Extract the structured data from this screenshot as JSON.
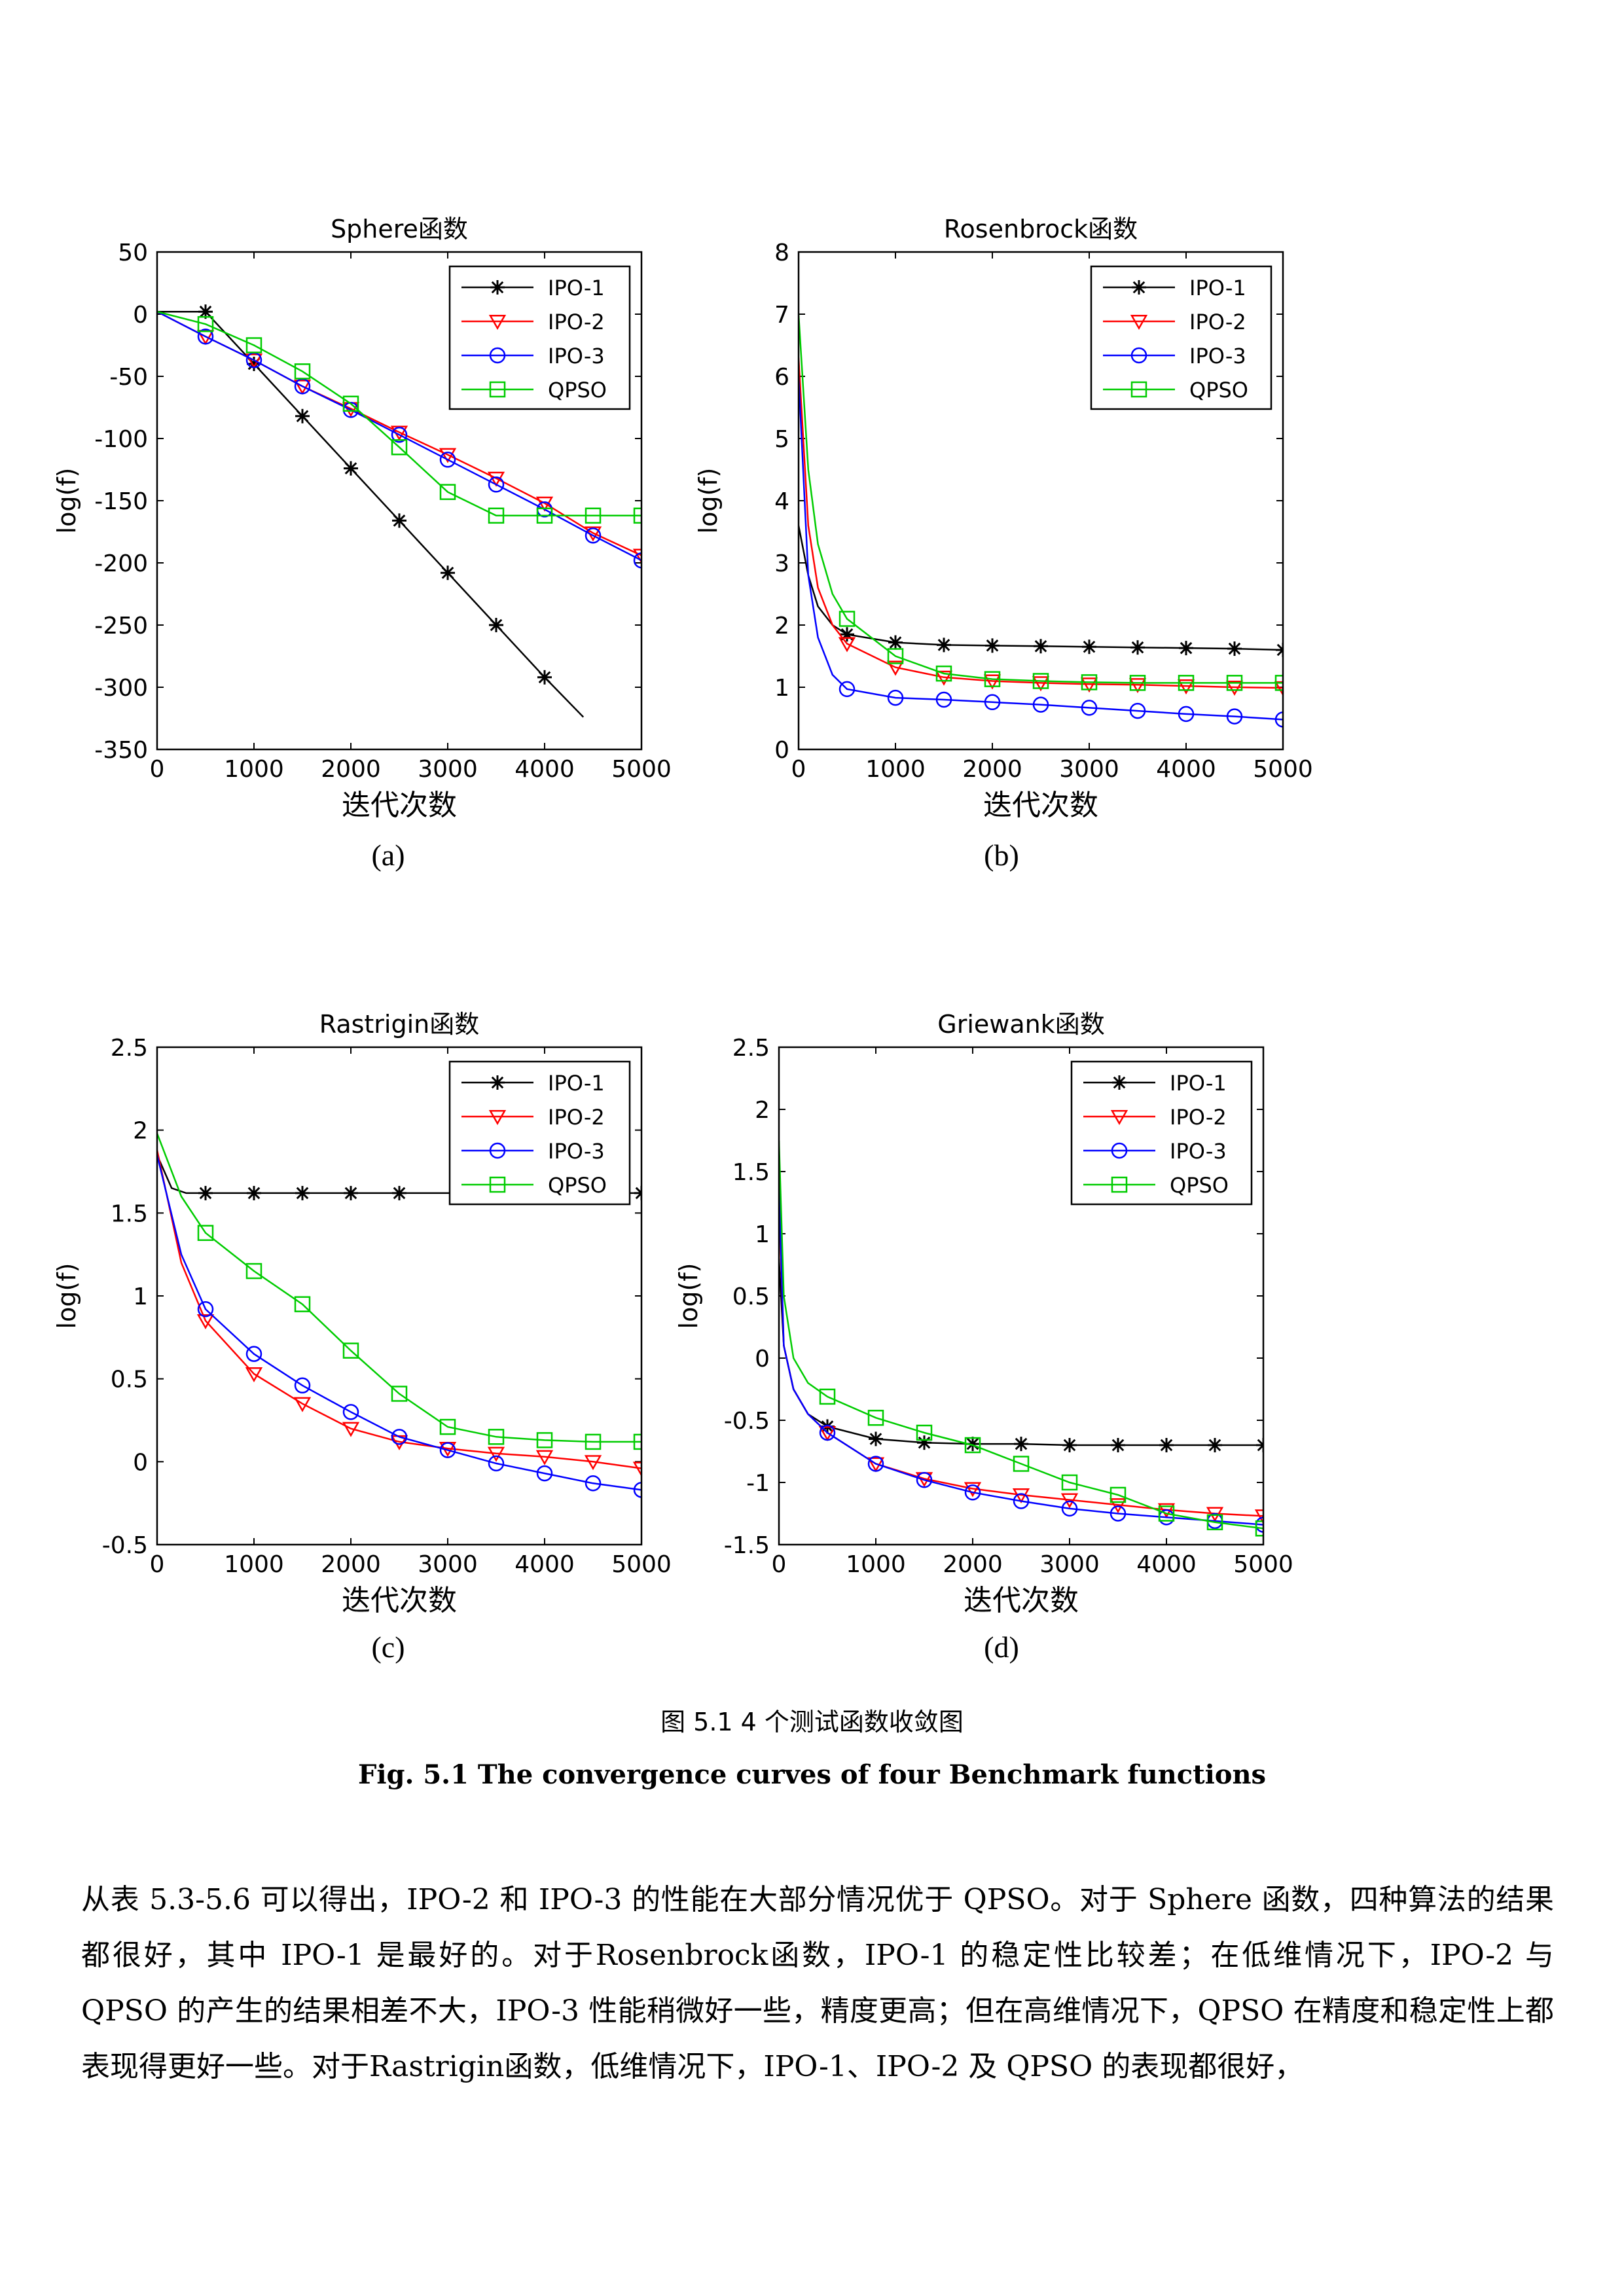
{
  "chart_data": [
    {
      "type": "line",
      "title": "Sphere函数",
      "xlabel": "迭代次数",
      "ylabel": "log(f)",
      "xlim": [
        0,
        5000
      ],
      "ylim": [
        -350,
        50
      ],
      "xticks": [
        0,
        1000,
        2000,
        3000,
        4000,
        5000
      ],
      "yticks": [
        -350,
        -300,
        -250,
        -200,
        -150,
        -100,
        -50,
        0,
        50
      ],
      "legend": "top-right",
      "grid": false,
      "sublabel": "(a)",
      "series": [
        {
          "name": "IPO-1",
          "color": "#000000",
          "marker": "star",
          "x": [
            0,
            500,
            1000,
            1500,
            2000,
            2500,
            3000,
            3500,
            4000,
            4400
          ],
          "y": [
            2,
            2,
            -40,
            -82,
            -124,
            -166,
            -208,
            -250,
            -292,
            -324
          ],
          "markers_x": [
            500,
            1000,
            1500,
            2000,
            2500,
            3000,
            3500,
            4000
          ]
        },
        {
          "name": "IPO-2",
          "color": "#ff0000",
          "marker": "triangle-down",
          "x": [
            0,
            500,
            1000,
            1500,
            2000,
            2500,
            3000,
            3500,
            4000,
            4500,
            5000
          ],
          "y": [
            2,
            -18,
            -37,
            -58,
            -76,
            -95,
            -113,
            -132,
            -152,
            -176,
            -194
          ],
          "markers_x": [
            500,
            1000,
            1500,
            2000,
            2500,
            3000,
            3500,
            4000,
            4500,
            5000
          ]
        },
        {
          "name": "IPO-3",
          "color": "#0000ff",
          "marker": "circle",
          "x": [
            0,
            500,
            1000,
            1500,
            2000,
            2500,
            3000,
            3500,
            4000,
            4500,
            5000
          ],
          "y": [
            2,
            -18,
            -37,
            -58,
            -77,
            -97,
            -117,
            -137,
            -157,
            -178,
            -198
          ],
          "markers_x": [
            500,
            1000,
            1500,
            2000,
            2500,
            3000,
            3500,
            4000,
            4500,
            5000
          ]
        },
        {
          "name": "QPSO",
          "color": "#00cc00",
          "marker": "square",
          "x": [
            0,
            500,
            1000,
            1500,
            2000,
            2500,
            3000,
            3500,
            4000,
            4500,
            5000
          ],
          "y": [
            2,
            -8,
            -25,
            -46,
            -72,
            -107,
            -143,
            -162,
            -162,
            -162,
            -162
          ],
          "markers_x": [
            500,
            1000,
            1500,
            2000,
            2500,
            3000,
            3500,
            4000,
            4500,
            5000
          ]
        }
      ]
    },
    {
      "type": "line",
      "title": "Rosenbrock函数",
      "xlabel": "迭代次数",
      "ylabel": "log(f)",
      "xlim": [
        0,
        5000
      ],
      "ylim": [
        0,
        8
      ],
      "xticks": [
        0,
        1000,
        2000,
        3000,
        4000,
        5000
      ],
      "yticks": [
        0,
        1,
        2,
        3,
        4,
        5,
        6,
        7,
        8
      ],
      "legend": "top-right",
      "grid": false,
      "sublabel": "(b)",
      "series": [
        {
          "name": "IPO-1",
          "color": "#000000",
          "marker": "star",
          "x": [
            0,
            100,
            200,
            350,
            500,
            1000,
            1500,
            2000,
            2500,
            3000,
            3500,
            4000,
            4500,
            5000
          ],
          "y": [
            3.6,
            2.8,
            2.3,
            2.0,
            1.85,
            1.72,
            1.68,
            1.67,
            1.66,
            1.65,
            1.64,
            1.63,
            1.62,
            1.6
          ],
          "markers_x": [
            500,
            1000,
            1500,
            2000,
            2500,
            3000,
            3500,
            4000,
            4500,
            5000
          ]
        },
        {
          "name": "IPO-2",
          "color": "#ff0000",
          "marker": "triangle-down",
          "x": [
            0,
            100,
            200,
            350,
            500,
            1000,
            1500,
            2000,
            2500,
            3000,
            3500,
            4000,
            4500,
            5000
          ],
          "y": [
            6.3,
            3.6,
            2.6,
            2.0,
            1.7,
            1.32,
            1.16,
            1.1,
            1.07,
            1.05,
            1.04,
            1.02,
            1.0,
            0.99
          ],
          "markers_x": [
            500,
            1000,
            1500,
            2000,
            2500,
            3000,
            3500,
            4000,
            4500,
            5000
          ]
        },
        {
          "name": "IPO-3",
          "color": "#0000ff",
          "marker": "circle",
          "x": [
            0,
            100,
            200,
            350,
            500,
            1000,
            1500,
            2000,
            2500,
            3000,
            3500,
            4000,
            4500,
            5000
          ],
          "y": [
            6.0,
            2.8,
            1.8,
            1.2,
            0.97,
            0.83,
            0.8,
            0.76,
            0.72,
            0.67,
            0.62,
            0.57,
            0.53,
            0.48
          ],
          "markers_x": [
            500,
            1000,
            1500,
            2000,
            2500,
            3000,
            3500,
            4000,
            4500,
            5000
          ]
        },
        {
          "name": "QPSO",
          "color": "#00cc00",
          "marker": "square",
          "x": [
            0,
            100,
            200,
            350,
            500,
            1000,
            1500,
            2000,
            2500,
            3000,
            3500,
            4000,
            4500,
            5000
          ],
          "y": [
            7.0,
            4.5,
            3.3,
            2.5,
            2.1,
            1.5,
            1.22,
            1.13,
            1.1,
            1.08,
            1.07,
            1.07,
            1.07,
            1.07
          ],
          "markers_x": [
            500,
            1000,
            1500,
            2000,
            2500,
            3000,
            3500,
            4000,
            4500,
            5000
          ]
        }
      ]
    },
    {
      "type": "line",
      "title": "Rastrigin函数",
      "xlabel": "迭代次数",
      "ylabel": "log(f)",
      "xlim": [
        0,
        5000
      ],
      "ylim": [
        -0.5,
        2.5
      ],
      "xticks": [
        0,
        1000,
        2000,
        3000,
        4000,
        5000
      ],
      "yticks": [
        -0.5,
        0,
        0.5,
        1,
        1.5,
        2,
        2.5
      ],
      "legend": "top-right",
      "grid": false,
      "sublabel": "(c)",
      "series": [
        {
          "name": "IPO-1",
          "color": "#000000",
          "marker": "star",
          "x": [
            0,
            150,
            300,
            500,
            1000,
            1500,
            2000,
            2500,
            3000,
            3500,
            4000,
            4500,
            5000
          ],
          "y": [
            1.85,
            1.65,
            1.62,
            1.62,
            1.62,
            1.62,
            1.62,
            1.62,
            1.62,
            1.62,
            1.62,
            1.62,
            1.62
          ],
          "markers_x": [
            500,
            1000,
            1500,
            2000,
            2500,
            5000
          ]
        },
        {
          "name": "IPO-2",
          "color": "#ff0000",
          "marker": "triangle-down",
          "x": [
            0,
            250,
            500,
            1000,
            1500,
            2000,
            2500,
            3000,
            3500,
            4000,
            4500,
            5000
          ],
          "y": [
            1.88,
            1.2,
            0.85,
            0.53,
            0.35,
            0.2,
            0.12,
            0.08,
            0.05,
            0.03,
            0.0,
            -0.04
          ],
          "markers_x": [
            500,
            1000,
            1500,
            2000,
            2500,
            3000,
            3500,
            4000,
            4500,
            5000
          ]
        },
        {
          "name": "IPO-3",
          "color": "#0000ff",
          "marker": "circle",
          "x": [
            0,
            250,
            500,
            1000,
            1500,
            2000,
            2500,
            3000,
            3500,
            4000,
            4500,
            5000
          ],
          "y": [
            1.85,
            1.25,
            0.92,
            0.65,
            0.46,
            0.3,
            0.15,
            0.07,
            -0.01,
            -0.07,
            -0.13,
            -0.17
          ],
          "markers_x": [
            500,
            1000,
            1500,
            2000,
            2500,
            3000,
            3500,
            4000,
            4500,
            5000
          ]
        },
        {
          "name": "QPSO",
          "color": "#00cc00",
          "marker": "square",
          "x": [
            0,
            250,
            500,
            1000,
            1500,
            2000,
            2500,
            3000,
            3500,
            4000,
            4500,
            5000
          ],
          "y": [
            1.98,
            1.6,
            1.38,
            1.15,
            0.95,
            0.67,
            0.41,
            0.21,
            0.15,
            0.13,
            0.12,
            0.12
          ],
          "markers_x": [
            500,
            1000,
            1500,
            2000,
            2500,
            3000,
            3500,
            4000,
            4500,
            5000
          ]
        }
      ]
    },
    {
      "type": "line",
      "title": "Griewank函数",
      "xlabel": "迭代次数",
      "ylabel": "log(f)",
      "xlim": [
        0,
        5000
      ],
      "ylim": [
        -1.5,
        2.5
      ],
      "xticks": [
        0,
        1000,
        2000,
        3000,
        4000,
        5000
      ],
      "yticks": [
        -1.5,
        -1,
        -0.5,
        0,
        0.5,
        1,
        1.5,
        2,
        2.5
      ],
      "legend": "top-right",
      "grid": false,
      "sublabel": "(d)",
      "series": [
        {
          "name": "IPO-1",
          "color": "#000000",
          "marker": "star",
          "x": [
            0,
            50,
            150,
            300,
            500,
            1000,
            1500,
            2000,
            2500,
            3000,
            3500,
            4000,
            4500,
            5000
          ],
          "y": [
            0.8,
            0.1,
            -0.25,
            -0.45,
            -0.55,
            -0.65,
            -0.68,
            -0.69,
            -0.69,
            -0.7,
            -0.7,
            -0.7,
            -0.7,
            -0.7
          ],
          "markers_x": [
            500,
            1000,
            1500,
            2000,
            2500,
            3000,
            3500,
            4000,
            4500,
            5000
          ]
        },
        {
          "name": "IPO-2",
          "color": "#ff0000",
          "marker": "triangle-down",
          "x": [
            0,
            50,
            150,
            300,
            500,
            1000,
            1500,
            2000,
            2500,
            3000,
            3500,
            4000,
            4500,
            5000
          ],
          "y": [
            1.3,
            0.1,
            -0.25,
            -0.45,
            -0.6,
            -0.85,
            -0.97,
            -1.05,
            -1.1,
            -1.14,
            -1.18,
            -1.22,
            -1.25,
            -1.27
          ],
          "markers_x": [
            500,
            1000,
            1500,
            2000,
            2500,
            3000,
            3500,
            4000,
            4500,
            5000
          ]
        },
        {
          "name": "IPO-3",
          "color": "#0000ff",
          "marker": "circle",
          "x": [
            0,
            50,
            150,
            300,
            500,
            1000,
            1500,
            2000,
            2500,
            3000,
            3500,
            4000,
            4500,
            5000
          ],
          "y": [
            1.4,
            0.1,
            -0.25,
            -0.45,
            -0.6,
            -0.85,
            -0.98,
            -1.08,
            -1.15,
            -1.21,
            -1.25,
            -1.28,
            -1.31,
            -1.34
          ],
          "markers_x": [
            500,
            1000,
            1500,
            2000,
            2500,
            3000,
            3500,
            4000,
            4500,
            5000
          ]
        },
        {
          "name": "QPSO",
          "color": "#00cc00",
          "marker": "square",
          "x": [
            0,
            50,
            150,
            300,
            500,
            1000,
            1500,
            2000,
            2500,
            3000,
            3500,
            4000,
            4500,
            5000
          ],
          "y": [
            1.75,
            0.5,
            0.0,
            -0.2,
            -0.31,
            -0.48,
            -0.6,
            -0.7,
            -0.85,
            -1.0,
            -1.1,
            -1.25,
            -1.32,
            -1.37
          ],
          "markers_x": [
            500,
            1000,
            1500,
            2000,
            2500,
            3000,
            3500,
            4000,
            4500,
            5000
          ]
        }
      ]
    }
  ],
  "caption": {
    "cn": "图 5.1 4 个测试函数收敛图",
    "en": "Fig. 5.1 The convergence curves of four Benchmark functions"
  },
  "body_text": "从表 5.3-5.6 可以得出，IPO-2 和 IPO-3 的性能在大部分情况优于 QPSO。对于 Sphere 函数，四种算法的结果都很好，其中 IPO-1 是最好的。对于Rosenbrock函数，IPO-1 的稳定性比较差；在低维情况下，IPO-2 与 QPSO 的产生的结果相差不大，IPO-3 性能稍微好一些，精度更高；但在高维情况下，QPSO 在精度和稳定性上都表现得更好一些。对于Rastrigin函数，低维情况下，IPO-1、IPO-2 及 QPSO 的表现都很好，"
}
